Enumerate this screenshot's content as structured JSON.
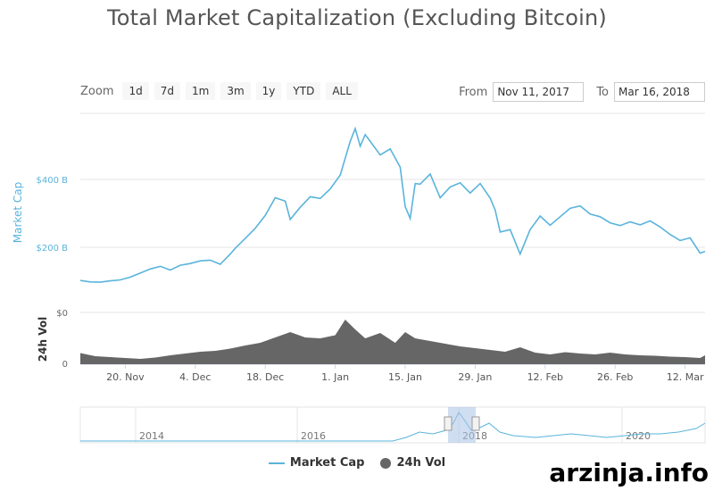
{
  "title": "Total Market Capitalization (Excluding Bitcoin)",
  "zoom": {
    "label": "Zoom",
    "buttons": [
      "1d",
      "7d",
      "1m",
      "3m",
      "1y",
      "YTD",
      "ALL"
    ]
  },
  "range": {
    "from_label": "From",
    "from_value": "Nov 11, 2017",
    "to_label": "To",
    "to_value": "Mar 16, 2018"
  },
  "legend": {
    "market_cap": "Market Cap",
    "volume": "24h Vol"
  },
  "watermark": "arzinja.info",
  "colors": {
    "market_cap": "#5ab4dc",
    "volume": "#666666",
    "navigator_mask": "#a9c3e6"
  },
  "chart_data": {
    "type": "line",
    "title": "Total Market Capitalization (Excluding Bitcoin)",
    "main": {
      "ylabel": "Market Cap",
      "ylim": [
        0,
        600
      ],
      "yticks": [
        200,
        400
      ],
      "ytick_labels": [
        "$200 B",
        "$400 B"
      ],
      "grid": true
    },
    "volume": {
      "ylabel": "24h Vol",
      "ytick_labels": [
        "$0",
        "0"
      ]
    },
    "x_ticks": [
      "20. Nov",
      "4. Dec",
      "18. Dec",
      "1. Jan",
      "15. Jan",
      "29. Jan",
      "12. Feb",
      "26. Feb",
      "12. Mar"
    ],
    "x_tick_days": [
      9,
      23,
      37,
      51,
      65,
      79,
      93,
      107,
      121
    ],
    "x_range_days": [
      0,
      125
    ],
    "series": [
      {
        "name": "Market Cap",
        "x": [
          0,
          2,
          4,
          6,
          8,
          10,
          12,
          14,
          16,
          18,
          20,
          22,
          24,
          26,
          28,
          30,
          31,
          33,
          35,
          37,
          39,
          41,
          42,
          44,
          46,
          48,
          50,
          52,
          54,
          55,
          56,
          57,
          58,
          60,
          62,
          64,
          65,
          66,
          67,
          68,
          70,
          72,
          74,
          76,
          78,
          80,
          82,
          83,
          84,
          86,
          88,
          90,
          92,
          94,
          96,
          98,
          100,
          102,
          104,
          106,
          108,
          110,
          112,
          114,
          116,
          118,
          120,
          122,
          124,
          125
        ],
        "values": [
          102,
          98,
          97,
          101,
          104,
          112,
          124,
          136,
          144,
          133,
          147,
          152,
          160,
          162,
          150,
          180,
          197,
          226,
          256,
          294,
          346,
          336,
          282,
          318,
          349,
          344,
          372,
          413,
          512,
          550,
          498,
          532,
          512,
          472,
          490,
          436,
          320,
          285,
          388,
          386,
          416,
          346,
          378,
          390,
          360,
          388,
          345,
          310,
          245,
          252,
          180,
          252,
          292,
          265,
          290,
          315,
          322,
          298,
          290,
          272,
          264,
          275,
          266,
          278,
          260,
          238,
          220,
          228,
          183,
          188
        ]
      },
      {
        "name": "24h Vol",
        "x": [
          0,
          3,
          6,
          9,
          12,
          15,
          18,
          21,
          24,
          27,
          30,
          33,
          36,
          39,
          42,
          45,
          48,
          51,
          53,
          55,
          57,
          60,
          63,
          65,
          67,
          70,
          73,
          76,
          79,
          82,
          85,
          88,
          91,
          94,
          97,
          100,
          103,
          106,
          109,
          112,
          115,
          118,
          121,
          124,
          125
        ],
        "values": [
          25,
          18,
          16,
          14,
          12,
          15,
          20,
          24,
          28,
          30,
          35,
          42,
          48,
          60,
          72,
          60,
          58,
          65,
          100,
          78,
          58,
          70,
          48,
          72,
          58,
          52,
          46,
          40,
          36,
          32,
          28,
          38,
          26,
          22,
          27,
          24,
          22,
          26,
          22,
          20,
          19,
          17,
          16,
          14,
          20
        ]
      }
    ],
    "navigator": {
      "x_ticks": [
        "2014",
        "2016",
        "2018",
        "2020"
      ]
    }
  }
}
